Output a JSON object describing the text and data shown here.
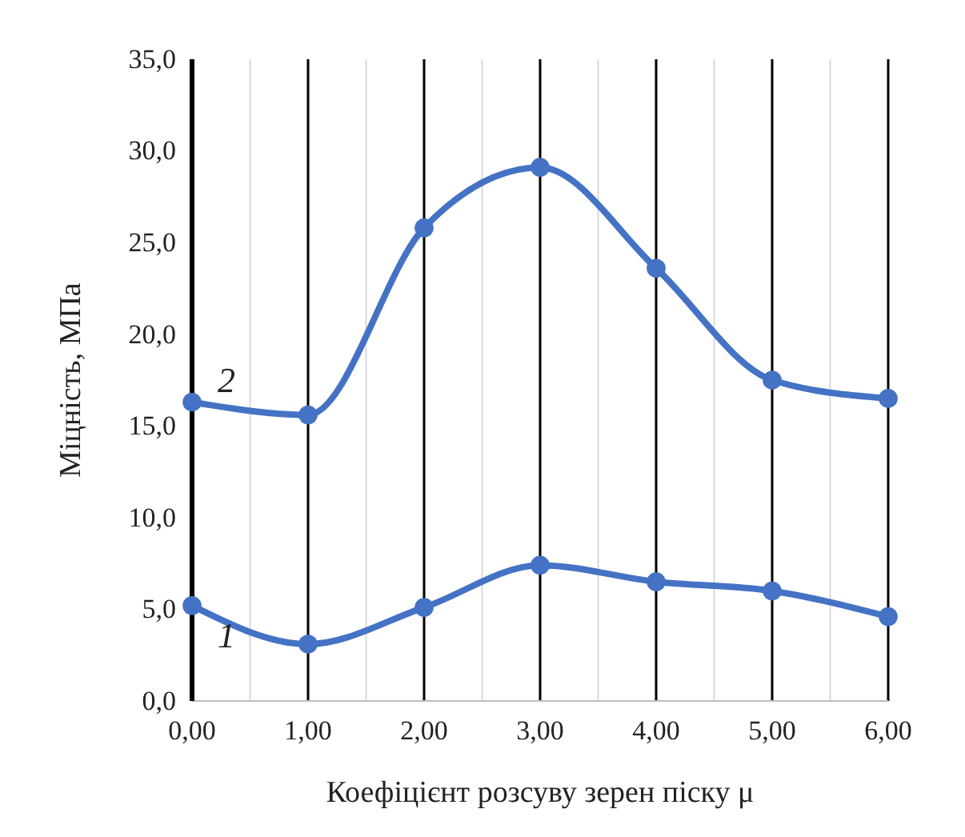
{
  "chart_data": {
    "type": "line",
    "xlabel": "Коефіцієнт розсуву зерен піску μ",
    "ylabel": "Міцність, МПа",
    "x": [
      0,
      1,
      2,
      3,
      4,
      5,
      6
    ],
    "series": [
      {
        "name": "1",
        "color": "#4472c4",
        "values": [
          5.2,
          3.1,
          5.1,
          7.4,
          6.5,
          6.0,
          4.6
        ]
      },
      {
        "name": "2",
        "color": "#4472c4",
        "values": [
          16.3,
          15.6,
          25.8,
          29.1,
          23.6,
          17.5,
          16.5
        ]
      }
    ],
    "xlim": [
      0,
      6
    ],
    "ylim": [
      0,
      35
    ],
    "xticks": [
      {
        "value": 0,
        "label": "0,00"
      },
      {
        "value": 0.5,
        "label": null
      },
      {
        "value": 1,
        "label": "1,00"
      },
      {
        "value": 1.5,
        "label": null
      },
      {
        "value": 2,
        "label": "2,00"
      },
      {
        "value": 2.5,
        "label": null
      },
      {
        "value": 3,
        "label": "3,00"
      },
      {
        "value": 3.5,
        "label": null
      },
      {
        "value": 4,
        "label": "4,00"
      },
      {
        "value": 4.5,
        "label": null
      },
      {
        "value": 5,
        "label": "5,00"
      },
      {
        "value": 5.5,
        "label": null
      },
      {
        "value": 6,
        "label": "6,00"
      }
    ],
    "yticks": [
      {
        "value": 0,
        "label": "0,0"
      },
      {
        "value": 5,
        "label": "5,0"
      },
      {
        "value": 10,
        "label": "10,0"
      },
      {
        "value": 15,
        "label": "15,0"
      },
      {
        "value": 20,
        "label": "20,0"
      },
      {
        "value": 25,
        "label": "25,0"
      },
      {
        "value": 30,
        "label": "30,0"
      },
      {
        "value": 35,
        "label": "35,0"
      }
    ],
    "grid": "x",
    "legend": false,
    "marker": "circle",
    "line_style": "solid"
  }
}
